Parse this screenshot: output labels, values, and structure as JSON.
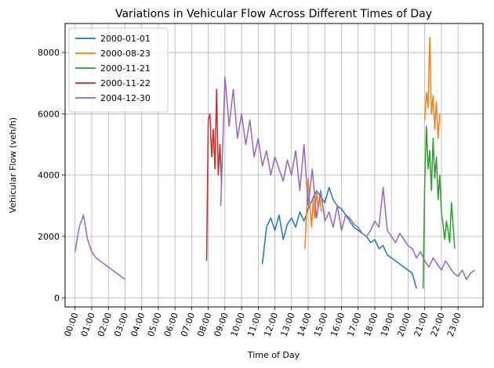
{
  "chart_data": {
    "type": "line",
    "title": "Variations in Vehicular Flow Across Different Times of Day",
    "xlabel": "Time of Day",
    "ylabel": "Vehicular Flow (veh/h)",
    "x_unit": "hour of day",
    "xlim": [
      -0.6,
      24.5
    ],
    "ylim": [
      -300,
      8950
    ],
    "yticks": [
      0,
      2000,
      4000,
      6000,
      8000
    ],
    "xticks": [
      "00:00",
      "01:00",
      "02:00",
      "03:00",
      "04:00",
      "05:00",
      "06:00",
      "07:00",
      "08:00",
      "09:00",
      "10:00",
      "11:00",
      "12:00",
      "13:00",
      "14:00",
      "15:00",
      "16:00",
      "17:00",
      "18:00",
      "19:00",
      "20:00",
      "21:00",
      "22:00",
      "23:00"
    ],
    "grid": true,
    "legend_position": "top-left",
    "series": [
      {
        "name": "2000-01-01",
        "color": "#1f77b4",
        "x": [
          11.25,
          11.5,
          11.75,
          12.0,
          12.25,
          12.5,
          12.75,
          13.0,
          13.25,
          13.5,
          13.75,
          14.0,
          14.25,
          14.5,
          14.75,
          15.0,
          15.25,
          15.5,
          15.75,
          16.0,
          16.25,
          16.5,
          16.75,
          17.0,
          17.25,
          17.5,
          17.75,
          18.0,
          18.25,
          18.5,
          18.75,
          19.0,
          19.25,
          19.5,
          19.75,
          20.0,
          20.25,
          20.5
        ],
        "y": [
          1100,
          2300,
          2600,
          2200,
          2700,
          1900,
          2400,
          2600,
          2300,
          2800,
          2500,
          2900,
          3200,
          3500,
          3300,
          3100,
          3600,
          3200,
          3000,
          2900,
          2700,
          2500,
          2300,
          2200,
          2100,
          2000,
          1800,
          1900,
          1600,
          1700,
          1400,
          1300,
          1200,
          1100,
          1000,
          900,
          800,
          300
        ]
      },
      {
        "name": "2000-08-23",
        "color": "#ff7f0e",
        "x": [
          13.8,
          13.9,
          14.0,
          14.1,
          14.2,
          14.3,
          14.4,
          14.5,
          14.6,
          14.7,
          14.8,
          21.0,
          21.1,
          21.2,
          21.3,
          21.4,
          21.5,
          21.6,
          21.7,
          21.8,
          21.9
        ],
        "y": [
          1600,
          2800,
          3900,
          3000,
          2300,
          3200,
          2600,
          3500,
          2900,
          3300,
          2800,
          5800,
          6700,
          6200,
          8500,
          6000,
          6600,
          5500,
          6400,
          5200,
          6000
        ]
      },
      {
        "name": "2000-11-21",
        "color": "#2ca02c",
        "x": [
          20.9,
          21.0,
          21.1,
          21.2,
          21.3,
          21.4,
          21.5,
          21.6,
          21.7,
          21.8,
          21.9,
          22.0,
          22.1,
          22.2,
          22.3,
          22.4,
          22.5,
          22.6,
          22.7,
          22.8
        ],
        "y": [
          300,
          3800,
          5600,
          4200,
          4800,
          3500,
          5200,
          3900,
          4600,
          3200,
          4000,
          2800,
          2400,
          1900,
          2500,
          2200,
          1800,
          3100,
          2400,
          1600
        ]
      },
      {
        "name": "2000-11-22",
        "color": "#d62728",
        "x": [
          7.9,
          8.0,
          8.1,
          8.2,
          8.3,
          8.4,
          8.5,
          8.6,
          8.7,
          8.8
        ],
        "y": [
          1200,
          5800,
          6000,
          4600,
          5500,
          4200,
          6800,
          4000,
          5000,
          3700
        ]
      },
      {
        "name": "2004-12-30",
        "color": "#9467bd",
        "x": [
          0.0,
          0.25,
          0.5,
          0.75,
          1.0,
          1.25,
          1.5,
          1.75,
          2.0,
          2.25,
          2.5,
          2.75,
          3.0,
          8.75,
          9.0,
          9.25,
          9.5,
          9.75,
          10.0,
          10.25,
          10.5,
          10.75,
          11.0,
          11.25,
          11.5,
          11.75,
          12.0,
          12.25,
          12.5,
          12.75,
          13.0,
          13.25,
          13.5,
          13.75,
          14.0,
          14.25,
          14.5,
          14.75,
          15.0,
          15.25,
          15.5,
          15.75,
          16.0,
          16.25,
          16.5,
          16.75,
          17.0,
          17.25,
          17.5,
          17.75,
          18.0,
          18.25,
          18.5,
          18.75,
          19.0,
          19.25,
          19.5,
          19.75,
          20.0,
          20.25,
          20.5,
          20.75,
          21.0,
          21.25,
          21.5,
          21.75,
          22.0,
          22.25,
          22.5,
          22.75,
          23.0,
          23.25,
          23.5,
          23.75,
          24.0
        ],
        "y": [
          1500,
          2300,
          2700,
          1900,
          1500,
          1300,
          1200,
          1100,
          1000,
          900,
          800,
          700,
          600,
          3000,
          7200,
          5600,
          6800,
          5200,
          6000,
          5000,
          5800,
          4600,
          5200,
          4300,
          4800,
          4000,
          4600,
          4200,
          3800,
          4500,
          4000,
          4800,
          3500,
          5000,
          3000,
          4200,
          2600,
          3500,
          2500,
          2800,
          2300,
          3000,
          2200,
          2700,
          2600,
          2400,
          2300,
          2100,
          2000,
          2200,
          2500,
          2300,
          3600,
          2200,
          2000,
          1800,
          2100,
          1900,
          1700,
          1600,
          1300,
          1500,
          1200,
          1000,
          1300,
          1100,
          900,
          1200,
          1000,
          800,
          700,
          900,
          600,
          800,
          900
        ]
      }
    ]
  }
}
